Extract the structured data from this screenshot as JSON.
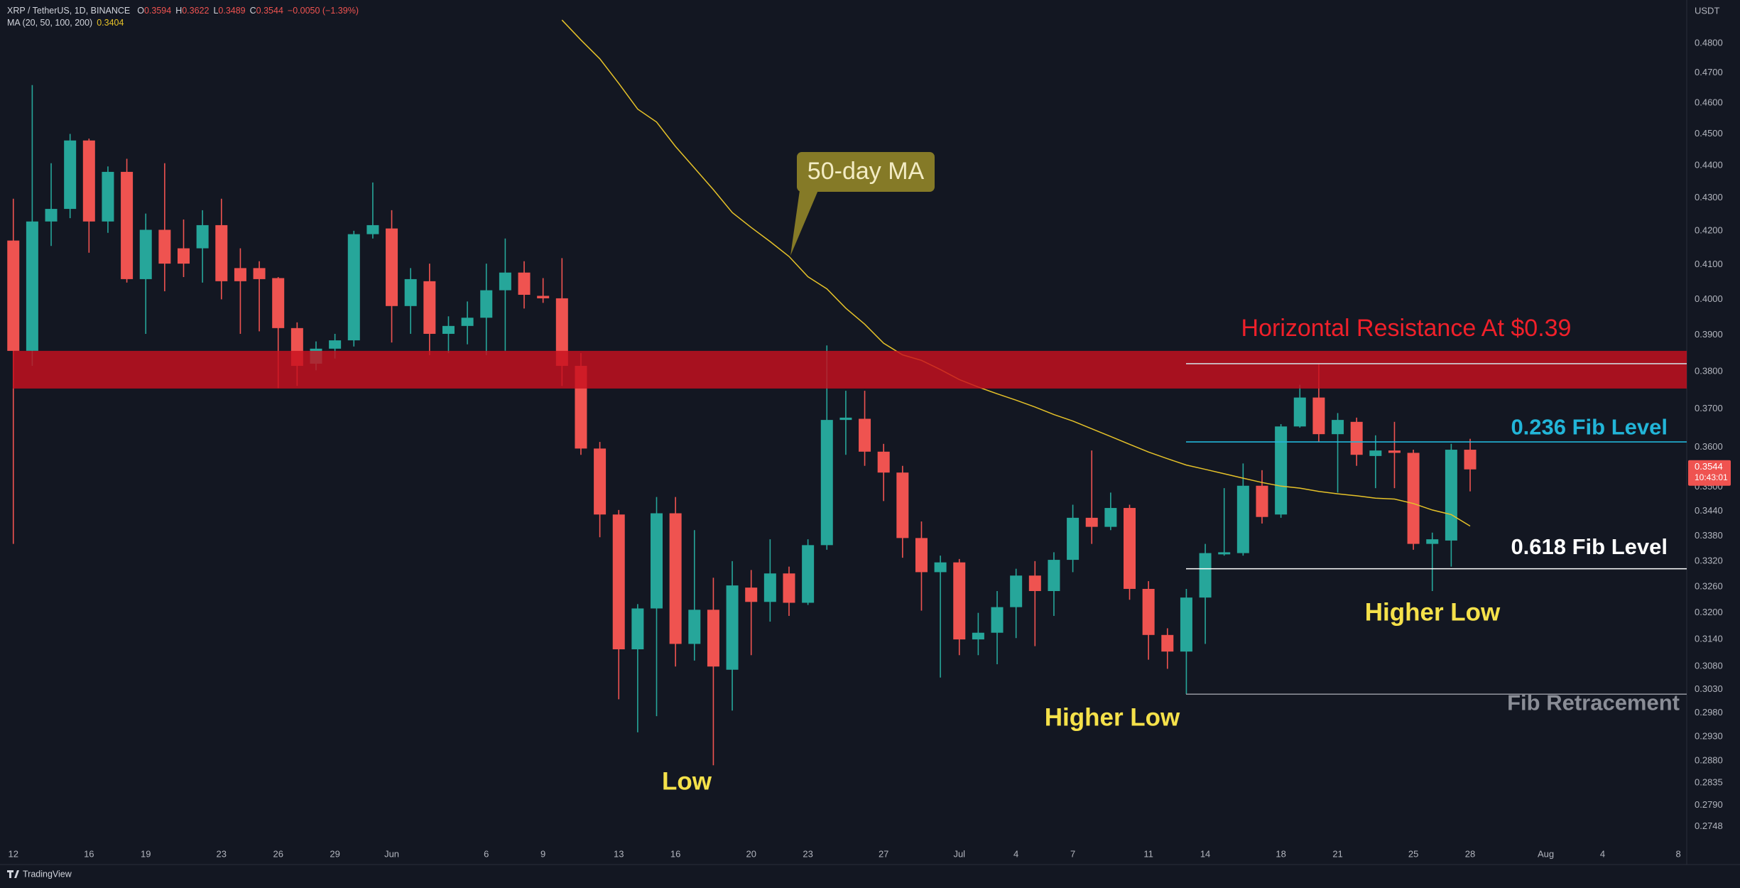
{
  "header": {
    "symbol": "XRP / TetherUS, 1D, BINANCE",
    "ohlc_letters": [
      "O",
      "H",
      "L",
      "C"
    ],
    "change": "−0.0050 (−1.39%)",
    "currency": "USDT",
    "countdown": "10:43:01",
    "brand": "TradingView"
  },
  "chart_data": {
    "type": "candlestick",
    "log": true,
    "grid": false,
    "up_color": "#26a69a",
    "down_color": "#ef5350",
    "categories": [
      "12",
      null,
      null,
      null,
      "16",
      null,
      null,
      "19",
      null,
      null,
      null,
      "23",
      null,
      null,
      "26",
      null,
      null,
      "29",
      null,
      null,
      "Jun",
      null,
      null,
      null,
      null,
      "6",
      null,
      null,
      "9",
      null,
      null,
      null,
      "13",
      null,
      null,
      "16",
      null,
      null,
      null,
      "20",
      null,
      null,
      "23",
      null,
      null,
      null,
      "27",
      null,
      null,
      null,
      "Jul",
      null,
      null,
      "4",
      null,
      null,
      "7",
      null,
      null,
      null,
      "11",
      null,
      null,
      "14",
      null,
      null,
      null,
      "18",
      null,
      null,
      "21",
      null,
      null,
      null,
      "25",
      null,
      null,
      "28",
      null,
      null,
      null,
      "Aug",
      null,
      null,
      "4",
      null,
      null,
      null,
      "8"
    ],
    "open": [
      0.4171,
      0.3856,
      0.4228,
      0.4266,
      0.4479,
      0.4228,
      0.438,
      0.4058,
      0.4203,
      0.4148,
      0.4148,
      0.4217,
      0.409,
      0.409,
      0.4061,
      0.3919,
      0.3821,
      0.3862,
      0.3885,
      0.419,
      0.4207,
      0.3981,
      0.4052,
      0.3903,
      0.3925,
      0.3948,
      0.4026,
      0.4077,
      0.401,
      0.4003,
      0.3815,
      0.3597,
      0.3432,
      0.3118,
      0.321,
      0.3435,
      0.313,
      0.3207,
      0.3073,
      0.3258,
      0.3225,
      0.3291,
      0.3223,
      0.3358,
      0.3671,
      0.3674,
      0.3589,
      0.3536,
      0.3375,
      0.3294,
      0.3317,
      0.314,
      0.3155,
      0.3213,
      0.3286,
      0.325,
      0.3323,
      0.3424,
      0.3402,
      0.3448,
      0.3255,
      0.315,
      0.3113,
      0.3235,
      0.3336,
      0.3339,
      0.3503,
      0.3432,
      0.3654,
      0.373,
      0.3634,
      0.3666,
      0.3578,
      0.3592,
      0.3586,
      0.3361,
      0.3369,
      0.3594,
      null,
      null,
      null,
      null,
      null,
      null,
      null,
      null,
      null,
      null,
      null
    ],
    "high": [
      0.4297,
      0.4659,
      0.4407,
      0.45,
      0.4485,
      0.4397,
      0.4421,
      0.4252,
      0.4407,
      0.4234,
      0.4262,
      0.4297,
      0.4148,
      0.411,
      0.4064,
      0.3935,
      0.3882,
      0.3903,
      0.42,
      0.4347,
      0.4262,
      0.409,
      0.4103,
      0.3952,
      0.3994,
      0.4103,
      0.4177,
      0.411,
      0.4061,
      0.4119,
      0.385,
      0.3614,
      0.3443,
      0.322,
      0.3475,
      0.3475,
      0.3394,
      0.3281,
      0.332,
      0.3299,
      0.3372,
      0.3307,
      0.3372,
      0.3871,
      0.3748,
      0.3748,
      0.3609,
      0.3553,
      0.3415,
      0.3333,
      0.3325,
      0.32,
      0.325,
      0.3302,
      0.332,
      0.3341,
      0.3456,
      0.3592,
      0.3486,
      0.3456,
      0.3273,
      0.3165,
      0.3255,
      0.3361,
      0.3497,
      0.3559,
      0.3542,
      0.366,
      0.3764,
      0.3821,
      0.3689,
      0.3677,
      0.3631,
      0.3666,
      0.3594,
      0.3388,
      0.3609,
      0.3622,
      null,
      null,
      null,
      null,
      null,
      null,
      null,
      null,
      null,
      null,
      null
    ],
    "low": [
      0.3361,
      0.3815,
      0.4155,
      0.4238,
      0.4135,
      0.4194,
      0.4048,
      0.3903,
      0.4023,
      0.4064,
      0.4048,
      0.4,
      0.3903,
      0.391,
      0.3755,
      0.3761,
      0.3803,
      0.3835,
      0.3868,
      0.4177,
      0.3879,
      0.3903,
      0.3844,
      0.385,
      0.3874,
      0.3844,
      0.3856,
      0.3974,
      0.399,
      0.3761,
      0.3581,
      0.3377,
      0.3009,
      0.2939,
      0.2973,
      0.308,
      0.3093,
      0.2871,
      0.2985,
      0.3105,
      0.318,
      0.3193,
      0.3218,
      0.3347,
      0.3581,
      0.3553,
      0.3465,
      0.3328,
      0.3205,
      0.3056,
      0.3105,
      0.3105,
      0.3085,
      0.3143,
      0.3125,
      0.3193,
      0.3294,
      0.3361,
      0.3394,
      0.323,
      0.3095,
      0.3075,
      0.302,
      0.313,
      0.3333,
      0.3333,
      0.341,
      0.3424,
      0.3651,
      0.3614,
      0.3486,
      0.3553,
      0.3497,
      0.3497,
      0.3347,
      0.325,
      0.3307,
      0.3489,
      null,
      null,
      null,
      null,
      null,
      null,
      null,
      null,
      null,
      null,
      null
    ],
    "close": [
      0.3856,
      0.4228,
      0.4266,
      0.4479,
      0.4228,
      0.438,
      0.4058,
      0.4203,
      0.4103,
      0.4103,
      0.4217,
      0.4052,
      0.4052,
      0.4058,
      0.3919,
      0.3815,
      0.3862,
      0.3885,
      0.419,
      0.4217,
      0.3981,
      0.4058,
      0.3903,
      0.3925,
      0.3948,
      0.4026,
      0.4077,
      0.4013,
      0.4003,
      0.3815,
      0.3597,
      0.3432,
      0.3118,
      0.321,
      0.3435,
      0.313,
      0.3207,
      0.308,
      0.3263,
      0.3225,
      0.3291,
      0.3223,
      0.3358,
      0.3671,
      0.3677,
      0.3589,
      0.3536,
      0.3375,
      0.3294,
      0.3317,
      0.314,
      0.3155,
      0.3213,
      0.3286,
      0.325,
      0.3323,
      0.3424,
      0.3402,
      0.3448,
      0.3255,
      0.315,
      0.3113,
      0.3235,
      0.3339,
      0.3341,
      0.3503,
      0.3426,
      0.3654,
      0.373,
      0.3634,
      0.3671,
      0.3581,
      0.3592,
      0.3586,
      0.3361,
      0.3372,
      0.3594,
      0.3544,
      null,
      null,
      null,
      null,
      null,
      null,
      null,
      null,
      null,
      null,
      null
    ],
    "ma": {
      "name": "MA (20, 50, 100, 200)",
      "color": "#e6c229",
      "values": [
        null,
        null,
        null,
        null,
        null,
        null,
        null,
        null,
        null,
        null,
        null,
        null,
        null,
        null,
        null,
        null,
        null,
        null,
        null,
        null,
        null,
        null,
        null,
        null,
        null,
        null,
        null,
        null,
        null,
        0.488,
        0.4811,
        0.4747,
        0.4665,
        0.458,
        0.4538,
        0.446,
        0.4392,
        0.4325,
        0.4255,
        0.421,
        0.4168,
        0.4124,
        0.4065,
        0.403,
        0.3975,
        0.393,
        0.3877,
        0.3845,
        0.383,
        0.3805,
        0.3778,
        0.3758,
        0.374,
        0.3723,
        0.3705,
        0.3685,
        0.3668,
        0.3648,
        0.3628,
        0.3608,
        0.3588,
        0.3571,
        0.3555,
        0.3544,
        0.3533,
        0.3522,
        0.3511,
        0.3502,
        0.3497,
        0.3489,
        0.3483,
        0.3478,
        0.3472,
        0.347,
        0.3459,
        0.3443,
        0.3432,
        0.3404,
        null,
        null,
        null,
        null,
        null,
        null,
        null,
        null,
        null,
        null,
        null
      ]
    },
    "ylim": [
      0.2711,
      0.495
    ],
    "yticks": [
      {
        "value": 0.48,
        "label": "0.4800"
      },
      {
        "value": 0.47,
        "label": "0.4700"
      },
      {
        "value": 0.46,
        "label": "0.4600"
      },
      {
        "value": 0.45,
        "label": "0.4500"
      },
      {
        "value": 0.44,
        "label": "0.4400"
      },
      {
        "value": 0.43,
        "label": "0.4300"
      },
      {
        "value": 0.42,
        "label": "0.4200"
      },
      {
        "value": 0.41,
        "label": "0.4100"
      },
      {
        "value": 0.4,
        "label": "0.4000"
      },
      {
        "value": 0.39,
        "label": "0.3900"
      },
      {
        "value": 0.38,
        "label": "0.3800"
      },
      {
        "value": 0.37,
        "label": "0.3700"
      },
      {
        "value": 0.36,
        "label": "0.3600"
      },
      {
        "value": 0.35,
        "label": "0.3500"
      },
      {
        "value": 0.344,
        "label": "0.3440"
      },
      {
        "value": 0.338,
        "label": "0.3380"
      },
      {
        "value": 0.332,
        "label": "0.3320"
      },
      {
        "value": 0.326,
        "label": "0.3260"
      },
      {
        "value": 0.32,
        "label": "0.3200"
      },
      {
        "value": 0.314,
        "label": "0.3140"
      },
      {
        "value": 0.308,
        "label": "0.3080"
      },
      {
        "value": 0.303,
        "label": "0.3030"
      },
      {
        "value": 0.298,
        "label": "0.2980"
      },
      {
        "value": 0.293,
        "label": "0.2930"
      },
      {
        "value": 0.288,
        "label": "0.2880"
      },
      {
        "value": 0.2835,
        "label": "0.2835"
      },
      {
        "value": 0.279,
        "label": "0.2790"
      },
      {
        "value": 0.2748,
        "label": "0.2748"
      }
    ],
    "zone": {
      "label": "Horizontal Resistance At $0.39",
      "range": [
        0.3754,
        0.3856
      ],
      "color": "#c8101e",
      "label_color": "#f0202a"
    },
    "levels": [
      {
        "value": 0.3821,
        "color": "#d1d4dc"
      },
      {
        "value": 0.3614,
        "color": "#22b5d8",
        "label": "0.236 Fib Level"
      },
      {
        "value": 0.3302,
        "color": "#ffffff",
        "label": "0.618 Fib Level"
      },
      {
        "value": 0.302,
        "color": "#8a8d96",
        "label": "Fib Retracement"
      }
    ],
    "annotations": [
      {
        "text": "Higher Low",
        "color": "#f5e14a"
      },
      {
        "text": "Higher Low",
        "color": "#f5e14a"
      },
      {
        "text": "Low",
        "color": "#f5e14a"
      },
      {
        "text": "50-day MA",
        "color": "#857a27"
      }
    ]
  }
}
